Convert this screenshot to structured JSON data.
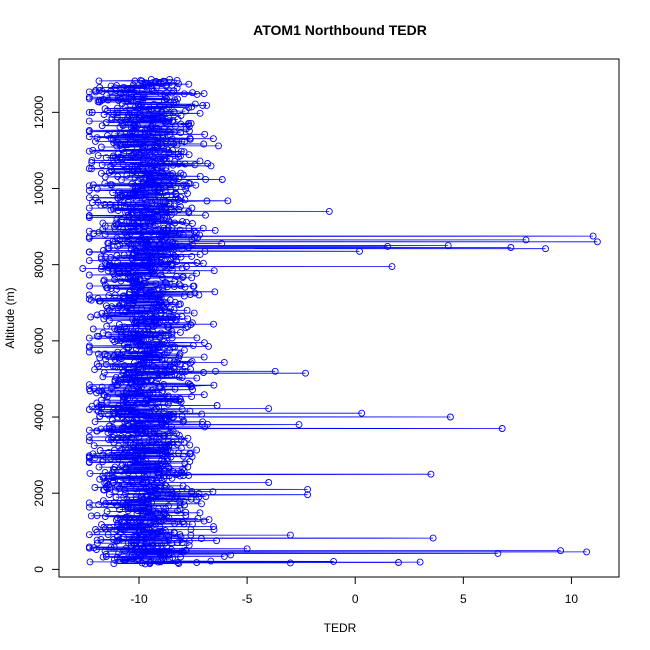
{
  "chart_data": {
    "type": "scatter",
    "title": "ATOM1 Northbound TEDR",
    "xlabel": "TEDR",
    "ylabel": "Altitude (m)",
    "xlim": [
      -13.7,
      12.2
    ],
    "ylim": [
      -200,
      13400
    ],
    "xticks": [
      "-10",
      "-5",
      "0",
      "5",
      "10"
    ],
    "xtick_values": [
      -10,
      -5,
      0,
      5,
      10
    ],
    "yticks": [
      "0",
      "2000",
      "4000",
      "6000",
      "8000",
      "10000",
      "12000"
    ],
    "ytick_values": [
      0,
      2000,
      4000,
      6000,
      8000,
      10000,
      12000
    ],
    "series_color": "#0000ff",
    "marker": "open-circle",
    "connected_by_lines": true,
    "grid": false,
    "bulk_band": {
      "x_center": -9.8,
      "x_spread": 1.6,
      "y_range": [
        150,
        12850
      ],
      "approx_points": 1800
    },
    "excursions": [
      {
        "x": -9.5,
        "y": 150
      },
      {
        "x": -3.0,
        "y": 170
      },
      {
        "x": 2.0,
        "y": 180
      },
      {
        "x": 3.0,
        "y": 190
      },
      {
        "x": -9.0,
        "y": 200
      },
      {
        "x": -1.0,
        "y": 210
      },
      {
        "x": -9.0,
        "y": 380
      },
      {
        "x": 6.6,
        "y": 420
      },
      {
        "x": -8.5,
        "y": 440
      },
      {
        "x": 10.7,
        "y": 460
      },
      {
        "x": -8.0,
        "y": 480
      },
      {
        "x": 9.5,
        "y": 490
      },
      {
        "x": -8.5,
        "y": 520
      },
      {
        "x": -5.0,
        "y": 540
      },
      {
        "x": -8.0,
        "y": 700
      },
      {
        "x": 3.6,
        "y": 820
      },
      {
        "x": -9.0,
        "y": 880
      },
      {
        "x": -3.0,
        "y": 900
      },
      {
        "x": -9.0,
        "y": 1000
      },
      {
        "x": -2.2,
        "y": 1960
      },
      {
        "x": -9.5,
        "y": 2050
      },
      {
        "x": -2.2,
        "y": 2100
      },
      {
        "x": -9.0,
        "y": 2200
      },
      {
        "x": -4.0,
        "y": 2280
      },
      {
        "x": -9.0,
        "y": 2400
      },
      {
        "x": 3.5,
        "y": 2500
      },
      {
        "x": -9.5,
        "y": 3550
      },
      {
        "x": 6.8,
        "y": 3700
      },
      {
        "x": -8.5,
        "y": 3750
      },
      {
        "x": -2.6,
        "y": 3800
      },
      {
        "x": -9.0,
        "y": 3900
      },
      {
        "x": 4.4,
        "y": 4000
      },
      {
        "x": -8.5,
        "y": 4050
      },
      {
        "x": 0.3,
        "y": 4100
      },
      {
        "x": -8.0,
        "y": 4200
      },
      {
        "x": -4.0,
        "y": 4220
      },
      {
        "x": -9.0,
        "y": 4800
      },
      {
        "x": -2.3,
        "y": 5150
      },
      {
        "x": -8.5,
        "y": 5180
      },
      {
        "x": -3.7,
        "y": 5200
      },
      {
        "x": -9.5,
        "y": 7900
      },
      {
        "x": -12.6,
        "y": 7900
      },
      {
        "x": 1.7,
        "y": 7950
      },
      {
        "x": -8.5,
        "y": 8000
      },
      {
        "x": -9.0,
        "y": 8200
      },
      {
        "x": 0.2,
        "y": 8350
      },
      {
        "x": -9.0,
        "y": 8380
      },
      {
        "x": 8.8,
        "y": 8420
      },
      {
        "x": -8.5,
        "y": 8430
      },
      {
        "x": 7.2,
        "y": 8450
      },
      {
        "x": 1.5,
        "y": 8480
      },
      {
        "x": 4.3,
        "y": 8500
      },
      {
        "x": -9.0,
        "y": 8550
      },
      {
        "x": 11.2,
        "y": 8600
      },
      {
        "x": -9.5,
        "y": 8620
      },
      {
        "x": 7.9,
        "y": 8650
      },
      {
        "x": -9.0,
        "y": 8700
      },
      {
        "x": 11.0,
        "y": 8750
      },
      {
        "x": -9.0,
        "y": 9200
      },
      {
        "x": -1.2,
        "y": 9400
      },
      {
        "x": -8.5,
        "y": 9450
      }
    ]
  }
}
